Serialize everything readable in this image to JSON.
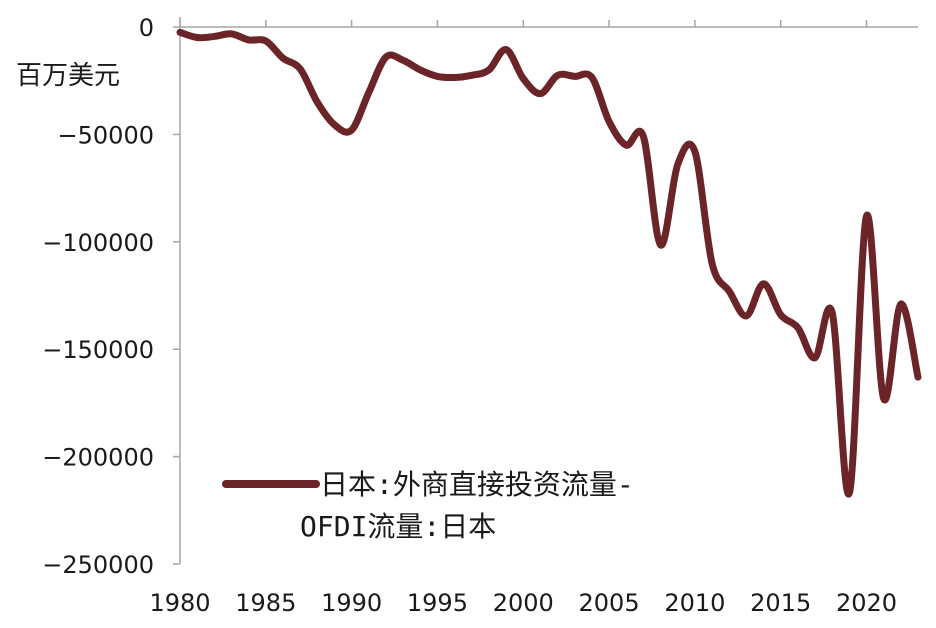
{
  "chart_data": {
    "type": "line",
    "title": "",
    "ylabel_unit": "百万美元",
    "xlim": [
      1980,
      2023
    ],
    "ylim": [
      -250000,
      0
    ],
    "x_ticks": [
      1980,
      1985,
      1990,
      1995,
      2000,
      2005,
      2010,
      2015,
      2020
    ],
    "y_ticks": [
      0,
      -50000,
      -100000,
      -150000,
      -200000,
      -250000
    ],
    "y_tick_labels": [
      "0",
      "−50000",
      "−100000",
      "−150000",
      "−200000",
      "−250000"
    ],
    "grid": false,
    "legend_position": "bottom-left",
    "legend_line1": "日本:外商直接投资流量-",
    "legend_line2": "OFDI流量:日本",
    "series": [
      {
        "name": "日本:外商直接投资流量-OFDI流量:日本",
        "color": "#6b2428",
        "x": [
          1980,
          1981,
          1982,
          1983,
          1984,
          1985,
          1986,
          1987,
          1988,
          1989,
          1990,
          1991,
          1992,
          1993,
          1994,
          1995,
          1996,
          1997,
          1998,
          1999,
          2000,
          2001,
          2002,
          2003,
          2004,
          2005,
          2006,
          2007,
          2008,
          2009,
          2010,
          2011,
          2012,
          2013,
          2014,
          2015,
          2016,
          2017,
          2018,
          2019,
          2020,
          2021,
          2022,
          2023
        ],
        "y": [
          -2500,
          -4900,
          -4400,
          -3200,
          -6000,
          -6500,
          -14500,
          -19500,
          -35000,
          -45500,
          -48000,
          -30500,
          -14000,
          -15500,
          -20000,
          -23000,
          -23500,
          -22500,
          -20000,
          -10500,
          -24000,
          -31000,
          -22500,
          -23000,
          -23500,
          -44000,
          -55000,
          -51000,
          -101500,
          -64000,
          -58000,
          -110000,
          -123000,
          -134500,
          -119500,
          -134000,
          -140000,
          -154000,
          -133000,
          -217000,
          -88000,
          -173000,
          -129000,
          -163000
        ]
      }
    ]
  }
}
